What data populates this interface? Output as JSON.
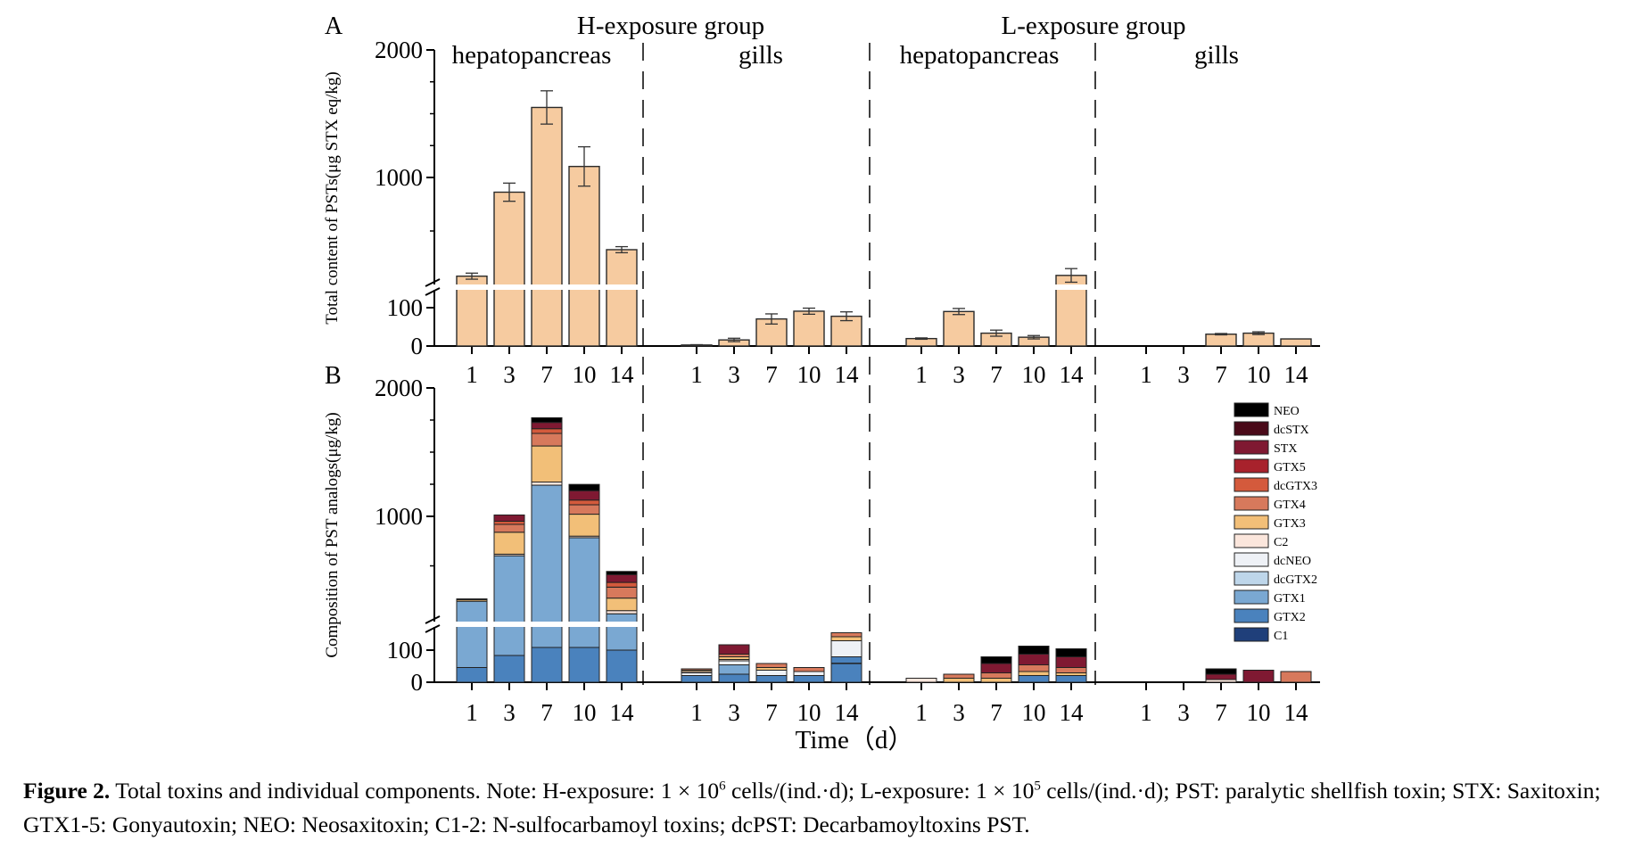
{
  "chart_data": [
    {
      "panel": "A",
      "type": "bar",
      "ylabel": "Total content of PSTs(μg STX eq/kg)",
      "y_break": true,
      "yticks_low": [
        "0",
        "100"
      ],
      "yticks_high": [
        "1000",
        "2000"
      ],
      "ylim_low": [
        0,
        145
      ],
      "ylim_high": [
        450,
        2000
      ],
      "categories": [
        "1",
        "3",
        "7",
        "10",
        "14"
      ],
      "error_bars": true,
      "bar_color": "#f6cba0",
      "groups": [
        {
          "exposure": "H-exposure group",
          "tissue": "hepatopancreas",
          "values": [
            505,
            1060,
            1620,
            1230,
            680
          ],
          "errors": [
            20,
            60,
            110,
            130,
            20
          ]
        },
        {
          "exposure": "H-exposure group",
          "tissue": "gills",
          "values": [
            3,
            18,
            80,
            103,
            88
          ],
          "errors": [
            1,
            5,
            15,
            9,
            13
          ]
        },
        {
          "exposure": "L-exposure group",
          "tissue": "hepatopancreas",
          "values": [
            22,
            102,
            38,
            26,
            510
          ],
          "errors": [
            2,
            9,
            9,
            5,
            45
          ]
        },
        {
          "exposure": "L-exposure group",
          "tissue": "gills",
          "values": [
            0,
            0,
            35,
            38,
            21
          ],
          "errors": [
            0,
            0,
            2,
            4,
            0
          ]
        }
      ]
    },
    {
      "panel": "B",
      "type": "bar",
      "stacked": true,
      "xlabel": "Time（d）",
      "ylabel": "Composition of PST analogs(μg/kg)",
      "y_break": true,
      "yticks_low": [
        "0",
        "100"
      ],
      "yticks_high": [
        "1000",
        "2000"
      ],
      "ylim_low": [
        0,
        190
      ],
      "ylim_high": [
        550,
        2000
      ],
      "categories": [
        "1",
        "3",
        "7",
        "10",
        "14"
      ],
      "legend": [
        {
          "name": "NEO",
          "color": "#000000"
        },
        {
          "name": "dcSTX",
          "color": "#4a0a19"
        },
        {
          "name": "STX",
          "color": "#7f1932"
        },
        {
          "name": "GTX5",
          "color": "#a8222c"
        },
        {
          "name": "dcGTX3",
          "color": "#d45a3c"
        },
        {
          "name": "GTX4",
          "color": "#d7795c"
        },
        {
          "name": "GTX3",
          "color": "#f2bf78"
        },
        {
          "name": "C2",
          "color": "#fbe6dc"
        },
        {
          "name": "dcNEO",
          "color": "#eef1f6"
        },
        {
          "name": "dcGTX2",
          "color": "#bed6ea"
        },
        {
          "name": "GTX1",
          "color": "#7aa8d2"
        },
        {
          "name": "GTX2",
          "color": "#4a82bd"
        },
        {
          "name": "C1",
          "color": "#1f3f7a"
        }
      ],
      "legend_position": "right",
      "groups": [
        {
          "exposure": "H-exposure group",
          "tissue": "hepatopancreas",
          "bars": [
            {
              "GTX2": 55,
              "GTX1": 585,
              "GTX3": 10,
              "GTX4": 5
            },
            {
              "GTX2": 100,
              "GTX1": 830,
              "C2": 10,
              "GTX3": 140,
              "GTX4": 50,
              "dcGTX3": 20,
              "STX": 40
            },
            {
              "GTX2": 130,
              "GTX1": 1250,
              "C2": 20,
              "GTX3": 230,
              "GTX4": 80,
              "dcGTX3": 30,
              "STX": 40,
              "NEO": 30
            },
            {
              "GTX2": 130,
              "GTX1": 915,
              "C2": 10,
              "GTX3": 140,
              "GTX4": 60,
              "dcGTX3": 30,
              "STX": 60,
              "NEO": 40
            },
            {
              "GTX2": 120,
              "GTX1": 440,
              "C2": 20,
              "GTX3": 80,
              "GTX4": 70,
              "dcGTX3": 30,
              "STX": 50,
              "NEO": 20
            }
          ]
        },
        {
          "exposure": "H-exposure group",
          "tissue": "gills",
          "bars": [
            {
              "GTX2": 25,
              "dcNEO": 10,
              "C2": 5,
              "GTX3": 5,
              "GTX4": 5
            },
            {
              "GTX2": 30,
              "GTX1": 35,
              "dcNEO": 15,
              "C2": 5,
              "GTX3": 10,
              "GTX4": 10,
              "STX": 35
            },
            {
              "GTX2": 25,
              "dcNEO": 20,
              "GTX3": 10,
              "GTX4": 15
            },
            {
              "GTX2": 25,
              "dcNEO": 15,
              "GTX4": 15
            },
            {
              "GTX2": 95,
              "dcNEO": 60,
              "GTX3": 15,
              "GTX4": 15,
              "STX": 60
            }
          ]
        },
        {
          "exposure": "L-exposure group",
          "tissue": "hepatopancreas",
          "bars": [
            {
              "C2": 15
            },
            {
              "GTX3": 15,
              "GTX4": 15
            },
            {
              "GTX3": 15,
              "GTX4": 20,
              "STX": 35,
              "NEO": 25
            },
            {
              "GTX2": 25,
              "GTX3": 15,
              "GTX4": 25,
              "STX": 40,
              "NEO": 30
            },
            {
              "GTX2": 25,
              "GTX3": 10,
              "GTX4": 20,
              "STX": 40,
              "NEO": 30
            }
          ]
        },
        {
          "exposure": "L-exposure group",
          "tissue": "gills",
          "bars": [
            {},
            {},
            {
              "C2": 10,
              "STX": 20,
              "NEO": 20
            },
            {
              "STX": 45
            },
            {
              "GTX4": 40
            }
          ]
        }
      ]
    }
  ],
  "labels": {
    "panel_a": "A",
    "panel_b": "B",
    "exposure_h": "H-exposure group",
    "exposure_l": "L-exposure group",
    "tissue_hepato_1": "hepatopancreas",
    "tissue_gills_1": "gills",
    "tissue_hepato_2": "hepatopancreas",
    "tissue_gills_2": "gills"
  },
  "caption": {
    "label": "Figure 2.",
    "text_1": " Total toxins and individual components. Note: H-exposure: 1 × 10",
    "sup_1": "6",
    "text_2": " cells/(ind.·d); L-exposure: 1 × 10",
    "sup_2": "5",
    "text_3": " cells/(ind.·d); PST: paralytic shellfish toxin; STX: Saxitoxin; GTX1-5: Gonyautoxin; NEO: Neosaxitoxin; C1-2: N-sulfocarbamoyl toxins; dcPST: Decarbamoyltoxins PST."
  }
}
